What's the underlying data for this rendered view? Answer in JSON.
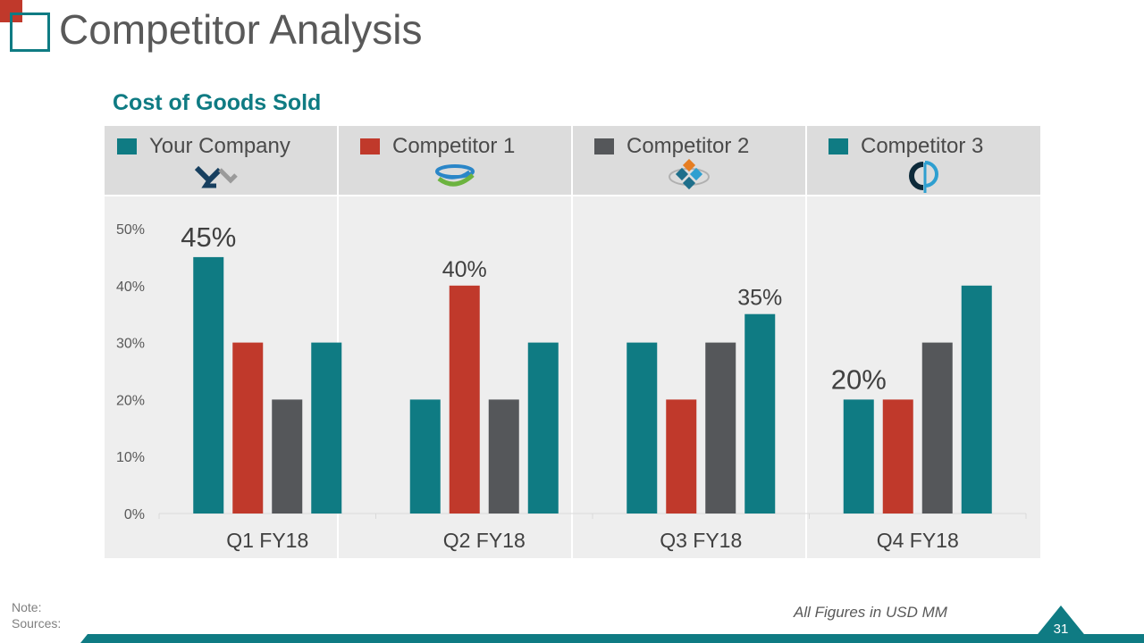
{
  "header": {
    "title": "Competitor Analysis"
  },
  "chart_data": {
    "type": "bar",
    "title": "Cost of Goods Sold",
    "categories": [
      "Q1 FY18",
      "Q2 FY18",
      "Q3 FY18",
      "Q4 FY18"
    ],
    "series": [
      {
        "name": "Your Company",
        "color": "#0f7b83",
        "values": [
          45,
          20,
          30,
          20
        ]
      },
      {
        "name": "Competitor 1",
        "color": "#c0392b",
        "values": [
          30,
          40,
          20,
          20
        ]
      },
      {
        "name": "Competitor 2",
        "color": "#55575a",
        "values": [
          20,
          20,
          30,
          30
        ]
      },
      {
        "name": "Competitor 3",
        "color": "#0f7b83",
        "values": [
          30,
          30,
          35,
          40
        ]
      }
    ],
    "ylim": [
      0,
      50
    ],
    "yticks": [
      "0%",
      "10%",
      "20%",
      "30%",
      "40%",
      "50%"
    ],
    "highlight_labels": [
      {
        "category": 0,
        "series": 0,
        "text": "45%"
      },
      {
        "category": 1,
        "series": 1,
        "text": "40%"
      },
      {
        "category": 2,
        "series": 3,
        "text": "35%"
      },
      {
        "category": 3,
        "series": 0,
        "text": "20%"
      }
    ],
    "xlabel": "",
    "ylabel": ""
  },
  "legend": [
    {
      "label": "Your Company",
      "color": "#0f7b83",
      "logo": "your-company-logo-icon"
    },
    {
      "label": "Competitor 1",
      "color": "#c0392b",
      "logo": "competitor-1-logo-icon"
    },
    {
      "label": "Competitor 2",
      "color": "#55575a",
      "logo": "competitor-2-logo-icon"
    },
    {
      "label": "Competitor 3",
      "color": "#0f7b83",
      "logo": "competitor-3-logo-icon"
    }
  ],
  "footer": {
    "note": "Note:",
    "sources": "Sources:",
    "units": "All Figures in USD MM",
    "page_number": "31"
  },
  "colors": {
    "accent": "#0f7b83",
    "corner": "#c0392b",
    "title": "#595959"
  }
}
